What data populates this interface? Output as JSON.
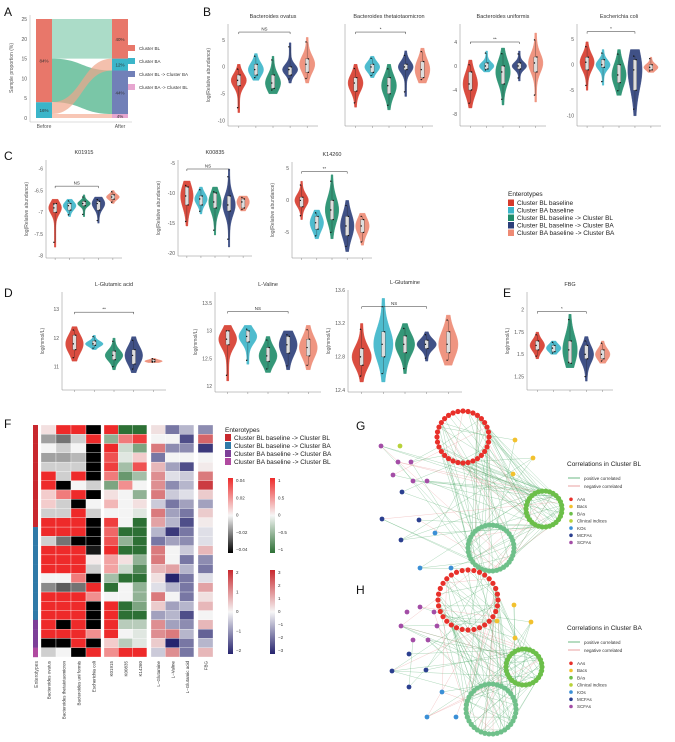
{
  "panel_labels": {
    "A": "A",
    "B": "B",
    "C": "C",
    "D": "D",
    "E": "E",
    "F": "F",
    "G": "G",
    "H": "H"
  },
  "colors": {
    "groups": [
      "#d63a2c",
      "#3bb5c9",
      "#1f8c6a",
      "#2c3f7a",
      "#ee8a74"
    ],
    "cluster_bl": "#e8776a",
    "cluster_ba": "#3bb5c9",
    "bl_to_ba": "#7180b8",
    "ba_to_bl": "#e7a6d0",
    "flow": "#4db38a"
  },
  "chart_data": {
    "alluvial": {
      "type": "alluvial",
      "ylabel": "Sample proportion (%)",
      "ylim": [
        0,
        25
      ],
      "yticks": [
        0,
        5,
        10,
        15,
        20,
        25
      ],
      "categories": [
        "Before",
        "After"
      ],
      "before": [
        {
          "name": "Cluster BA",
          "value": 4,
          "label": "16%"
        },
        {
          "name": "Cluster BL",
          "value": 21,
          "label": "84%"
        }
      ],
      "after": [
        {
          "name": "Cluster BA -> Cluster BL",
          "value": 1,
          "label": "4%"
        },
        {
          "name": "Cluster BL -> Cluster BA",
          "value": 11,
          "label": "44%"
        },
        {
          "name": "Cluster BA",
          "value": 3,
          "label": "12%"
        },
        {
          "name": "Cluster BL",
          "value": 10,
          "label": "40%"
        }
      ],
      "legend": [
        "Cluster BL",
        "Cluster BA",
        "Cluster BL -> Cluster BA",
        "Cluster BA -> Cluster BL"
      ]
    },
    "violins": {
      "groups": [
        "Cluster BL baseline",
        "Cluster BA baseline",
        "Cluster BL baseline -> Cluster BL",
        "Cluster BL baseline -> Cluster BA",
        "Cluster BA baseline -> Cluster BA"
      ],
      "legend_title": "Enterotypes",
      "plots": [
        {
          "title": "Bacteroides ovatus",
          "ylabel": "log(Relative abundance)",
          "ylim": [
            -11,
            8
          ],
          "yticks": [
            -10,
            -5,
            0,
            5
          ],
          "sig": "NS",
          "sig_y": 6.5,
          "stats": [
            [
              -2.5,
              -3.5,
              -1.5,
              -8.5,
              0.5
            ],
            [
              -0.5,
              -1.5,
              0.5,
              -2.5,
              2.5
            ],
            [
              -3,
              -4,
              -1.5,
              -5,
              2
            ],
            [
              -0.5,
              -1.5,
              0,
              -3,
              4.5
            ],
            [
              0.5,
              -1,
              1.5,
              -3,
              5.5
            ]
          ]
        },
        {
          "title": "Bacteroides thetaiotaomicron",
          "ylabel": "",
          "ylim": [
            -11,
            8
          ],
          "yticks": [],
          "sig": "*",
          "sig_y": 6.5,
          "stats": [
            [
              -3,
              -4.5,
              -2,
              -7.5,
              0.5
            ],
            [
              0,
              -1,
              0.5,
              -2,
              2
            ],
            [
              -3.5,
              -5,
              -2,
              -8,
              0.5
            ],
            [
              0,
              -0.5,
              0.5,
              -5.5,
              3
            ],
            [
              -0.5,
              -2,
              1,
              -3,
              3.5
            ]
          ]
        },
        {
          "title": "Bacteroides uniformis",
          "ylabel": "",
          "ylim": [
            -10,
            7
          ],
          "yticks": [
            -8,
            -4,
            0,
            4
          ],
          "sig": "**",
          "sig_y": 4,
          "stats": [
            [
              -3,
              -4,
              -1,
              -7,
              1
            ],
            [
              0,
              -0.5,
              0.5,
              -1,
              2.5
            ],
            [
              -1,
              -3,
              0,
              -6.5,
              3
            ],
            [
              0,
              -0.5,
              0.5,
              -2.5,
              2.5
            ],
            [
              0.5,
              -1,
              1.5,
              -6,
              5.5
            ]
          ]
        },
        {
          "title": "Escherichia coli",
          "ylabel": "",
          "ylim": [
            -12,
            8
          ],
          "yticks": [
            -10,
            -5,
            0,
            5
          ],
          "sig": "*",
          "sig_y": 6.5,
          "stats": [
            [
              0.5,
              -1,
              1.5,
              -5,
              4.5
            ],
            [
              0,
              -0.5,
              1,
              -4,
              3
            ],
            [
              -2,
              -3.5,
              0,
              -6,
              3
            ],
            [
              -1,
              -5,
              1,
              -10,
              3
            ],
            [
              -0.5,
              -1,
              0,
              -1.5,
              1.5
            ]
          ]
        },
        {
          "title": "K01915",
          "ylabel": "log(Relative abundance)",
          "ylim": [
            -8.05,
            -5.8
          ],
          "yticks": [
            -8.0,
            -7.5,
            -7.0,
            -6.5,
            -6.0
          ],
          "sig": "NS",
          "sig_y": -6.4,
          "stats": [
            [
              -6.9,
              -7,
              -6.8,
              -7.8,
              -6.7
            ],
            [
              -6.85,
              -6.95,
              -6.8,
              -7.1,
              -6.7
            ],
            [
              -6.8,
              -6.85,
              -6.75,
              -7.1,
              -6.6
            ],
            [
              -6.8,
              -6.95,
              -6.75,
              -7.25,
              -6.65
            ],
            [
              -6.65,
              -6.7,
              -6.6,
              -6.8,
              -6.5
            ]
          ]
        },
        {
          "title": "K00835",
          "ylabel": "log(Relative abundance)",
          "ylim": [
            -20.5,
            -4.5
          ],
          "yticks": [
            -20,
            -15,
            -10,
            -5
          ],
          "sig": "NS",
          "sig_y": -6,
          "stats": [
            [
              -10.5,
              -12,
              -9,
              -15.5,
              -8
            ],
            [
              -11,
              -12,
              -10.5,
              -13.5,
              -9
            ],
            [
              -11.5,
              -12.5,
              -10,
              -17,
              -9
            ],
            [
              -12,
              -13,
              -10.5,
              -19,
              -6
            ],
            [
              -11.5,
              -12.5,
              -11,
              -13,
              -10.5
            ]
          ]
        },
        {
          "title": "K14260",
          "ylabel": "log(Relative abundance)",
          "ylim": [
            -9,
            6
          ],
          "yticks": [
            5,
            0,
            -5
          ],
          "sig": "**",
          "sig_y": 4.5,
          "stats": [
            [
              0,
              -1,
              0.5,
              -3,
              3
            ],
            [
              -3.5,
              -4.5,
              -2.5,
              -6,
              -1.5
            ],
            [
              -1.5,
              -3,
              0,
              -6,
              4
            ],
            [
              -4,
              -5.5,
              -2.5,
              -8,
              0
            ],
            [
              -4,
              -5,
              -3,
              -7,
              -2
            ]
          ]
        },
        {
          "title": "L-Glutamic acid",
          "ylabel": "log(mmol/L)",
          "ylim": [
            10.2,
            13.6
          ],
          "yticks": [
            11,
            12,
            13
          ],
          "sig": "**",
          "sig_y": 12.9,
          "stats": [
            [
              11.8,
              11.6,
              12.1,
              11.2,
              12.4
            ],
            [
              11.8,
              11.75,
              11.9,
              11.6,
              12.1
            ],
            [
              11.4,
              11.25,
              11.55,
              10.9,
              12
            ],
            [
              11.4,
              11.1,
              11.6,
              10.8,
              12.05
            ],
            [
              11.2,
              11.18,
              11.25,
              11.15,
              11.3
            ]
          ]
        },
        {
          "title": "L-Valine",
          "ylabel": "log(mmol/L)",
          "ylim": [
            11.9,
            13.7
          ],
          "yticks": [
            12.0,
            12.5,
            13.0,
            13.5
          ],
          "sig": "NS",
          "sig_y": 13.35,
          "stats": [
            [
              12.85,
              12.75,
              13,
              12.1,
              13.1
            ],
            [
              12.9,
              12.8,
              13,
              12.4,
              13.1
            ],
            [
              12.55,
              12.45,
              12.7,
              12.25,
              12.9
            ],
            [
              12.75,
              12.6,
              12.9,
              12.3,
              13
            ],
            [
              12.7,
              12.55,
              12.85,
              12.3,
              13.1
            ]
          ]
        },
        {
          "title": "L-Glutamine",
          "ylabel": "log(mmol/L)",
          "ylim": [
            12.38,
            13.6
          ],
          "yticks": [
            12.4,
            12.8,
            13.2,
            13.6
          ],
          "sig": "NS",
          "sig_y": 13.4,
          "stats": [
            [
              12.8,
              12.7,
              12.9,
              12.5,
              13.2
            ],
            [
              12.95,
              12.8,
              13.1,
              12.5,
              13.5
            ],
            [
              12.95,
              12.85,
              13.05,
              12.6,
              13.2
            ],
            [
              12.95,
              12.9,
              13.0,
              12.75,
              13.1
            ],
            [
              12.95,
              12.85,
              13.1,
              12.7,
              13.3
            ]
          ]
        },
        {
          "title": "FBG",
          "ylabel": "log(mmol/L)",
          "ylim": [
            1.1,
            2.2
          ],
          "yticks": [
            1.25,
            1.5,
            1.75,
            2.0
          ],
          "sig": "*",
          "sig_y": 1.98,
          "stats": [
            [
              1.6,
              1.55,
              1.65,
              1.45,
              1.75
            ],
            [
              1.57,
              1.53,
              1.6,
              1.5,
              1.65
            ],
            [
              1.55,
              1.4,
              1.65,
              1.35,
              1.95
            ],
            [
              1.5,
              1.45,
              1.6,
              1.2,
              1.7
            ],
            [
              1.5,
              1.45,
              1.55,
              1.4,
              1.65
            ]
          ]
        }
      ]
    },
    "heatmap": {
      "type": "heatmap",
      "columns": [
        "Bacteroides  ovatus",
        "Bacteroides thetaiotaomicron",
        "Bacteroides uni formis",
        "Escherichia coli",
        "K01915",
        "K00835",
        "K14260",
        "L−Glutamine",
        "L−Valine",
        "L−Glutamic acid",
        "FBG"
      ],
      "annotation_label": "Enterotypes",
      "legend_title": "Enterotypes",
      "annotation_legend": [
        {
          "name": "Cluster BL baseline -> Cluster BL",
          "color": "#c8282e"
        },
        {
          "name": "Cluster BL baseline -> Cluster BA",
          "color": "#2f7aa8"
        },
        {
          "name": "Cluster BA baseline -> Cluster BA",
          "color": "#7d3f98"
        },
        {
          "name": "Cluster BA baseline -> Cluster BL",
          "color": "#b04aa0"
        }
      ],
      "row_groups": [
        0,
        0,
        0,
        0,
        0,
        0,
        0,
        0,
        0,
        0,
        0,
        1,
        1,
        1,
        1,
        1,
        1,
        1,
        1,
        1,
        1,
        2,
        2,
        2,
        3
      ],
      "values_normalized": [
        [
          0.1,
          1,
          1,
          -1,
          1,
          -1,
          -1,
          0.1,
          -0.6,
          -0.3,
          -0.5
        ],
        [
          -0.3,
          -0.5,
          -0.1,
          1,
          -0.5,
          0.6,
          0.9,
          0,
          0,
          -0.8,
          0.7
        ],
        [
          0,
          -0.1,
          0,
          -1,
          1,
          -0.2,
          -0.6,
          0.6,
          -0.5,
          -0.5,
          -0.9
        ],
        [
          -0.3,
          -0.3,
          -0.2,
          -1,
          0.8,
          -0.1,
          0.2,
          -0.6,
          0,
          0,
          0
        ],
        [
          -0.1,
          -0.1,
          -0.1,
          -1,
          0.9,
          -0.4,
          0.8,
          0.3,
          -0.4,
          -0.8,
          0.05
        ],
        [
          1,
          -0.1,
          1,
          -1,
          0.6,
          -0.7,
          -0.4,
          0.5,
          -0.1,
          -0.2,
          0.6
        ],
        [
          1,
          -1,
          0,
          -0.1,
          -0.6,
          0.5,
          0,
          0.5,
          -0.5,
          -0.3,
          0.9
        ],
        [
          0.2,
          0.6,
          1,
          -1,
          0.1,
          0,
          -0.5,
          0.6,
          -0.2,
          -0.1,
          0.2
        ],
        [
          0.2,
          -0.1,
          -1,
          0,
          0.3,
          0,
          0.1,
          -0.2,
          -0.6,
          -0.4,
          -0.4
        ],
        [
          -0.1,
          -0.1,
          1,
          -0.1,
          0,
          0,
          -0.1,
          0.6,
          -0.4,
          -0.6,
          0.2
        ],
        [
          1,
          1,
          1,
          -1,
          0.9,
          0,
          -1,
          0.4,
          -0.3,
          -0.8,
          0.05
        ],
        [
          1,
          1,
          1,
          -1,
          0.7,
          -1,
          -1,
          -0.3,
          -0.9,
          -0.6,
          -0.1
        ],
        [
          -0.1,
          -0.5,
          -1,
          -1,
          0.8,
          -0.5,
          -1,
          -0.6,
          -0.4,
          -0.5,
          -0.1
        ],
        [
          1,
          1,
          1,
          -0.9,
          1,
          -1,
          -1,
          0.6,
          0,
          -0.2,
          0.3
        ],
        [
          1,
          1,
          1,
          0.05,
          0.4,
          0.1,
          -0.5,
          0.6,
          0,
          -0.6,
          -0.5
        ],
        [
          1,
          1,
          1,
          -0.1,
          0.4,
          -0.2,
          -0.8,
          0.3,
          0.4,
          -0.3,
          -0.6
        ],
        [
          0,
          0,
          0.6,
          -1,
          -0.4,
          -1,
          -1,
          0.1,
          -1,
          -0.6,
          -0.1
        ],
        [
          -0.4,
          -0.6,
          -0.5,
          1,
          -1,
          0,
          -0.5,
          -0.1,
          -0.3,
          -0.6,
          0.4
        ],
        [
          1,
          1,
          1,
          0.5,
          0,
          0,
          -0.5,
          0.6,
          0,
          -0.6,
          0.1
        ],
        [
          1,
          1,
          1,
          -1,
          1,
          -1,
          -0.6,
          0.2,
          -0.4,
          -0.3,
          0.3
        ],
        [
          1,
          1,
          1,
          -1,
          1,
          -1,
          -1,
          -0.4,
          -0.3,
          -0.8,
          0
        ],
        [
          1,
          -1,
          1,
          -1,
          1,
          -0.3,
          -0.3,
          0.5,
          -0.4,
          -0.5,
          0.3
        ],
        [
          1,
          1,
          1,
          0.5,
          1,
          0,
          -0.1,
          0.5,
          0.6,
          -0.3,
          -0.7
        ],
        [
          -1,
          -1,
          1,
          -1,
          0.2,
          -0.3,
          -0.1,
          0.2,
          -1,
          -0.6,
          -0.3
        ],
        [
          -0.1,
          0,
          -1,
          1,
          0.5,
          1,
          1,
          -0.2,
          0.5,
          -0.6,
          0.3
        ]
      ],
      "color_scales": [
        {
          "ticks": [
            "0.04",
            "0.02",
            "0",
            "−0.02",
            "−0.04"
          ],
          "high": "#ee2a2a",
          "low": "#000000"
        },
        {
          "ticks": [
            "1",
            "0.5",
            "0",
            "−0.5",
            "−1"
          ],
          "high": "#ee2a2a",
          "low": "#2d7035"
        },
        {
          "ticks": [
            "2",
            "1",
            "0",
            "−1",
            "−2"
          ],
          "high": "#c8282e",
          "low": "#26246e"
        },
        {
          "ticks": [
            "3",
            "2",
            "1",
            "0",
            "−1",
            "−2",
            "−3"
          ],
          "high": "#c8282e",
          "low": "#26246e"
        }
      ]
    },
    "networks": [
      {
        "title": "Correlations in Cluster BL"
      },
      {
        "title": "Correlations in Cluster BA"
      }
    ],
    "network_legend": {
      "edges": [
        {
          "name": "positive correlated",
          "color": "#4aa865"
        },
        {
          "name": "negative correlated",
          "color": "#e58a8a"
        }
      ],
      "nodes": [
        {
          "name": "AAs",
          "color": "#e8302a"
        },
        {
          "name": "Bacs",
          "color": "#f2c12e"
        },
        {
          "name": "BAs",
          "color": "#6cbf4a"
        },
        {
          "name": "Clinical indices",
          "color": "#b8d23a"
        },
        {
          "name": "KOs",
          "color": "#3a8fd6"
        },
        {
          "name": "MCFAs",
          "color": "#2b3f8f"
        },
        {
          "name": "SCFAs",
          "color": "#a34da6"
        }
      ]
    }
  }
}
